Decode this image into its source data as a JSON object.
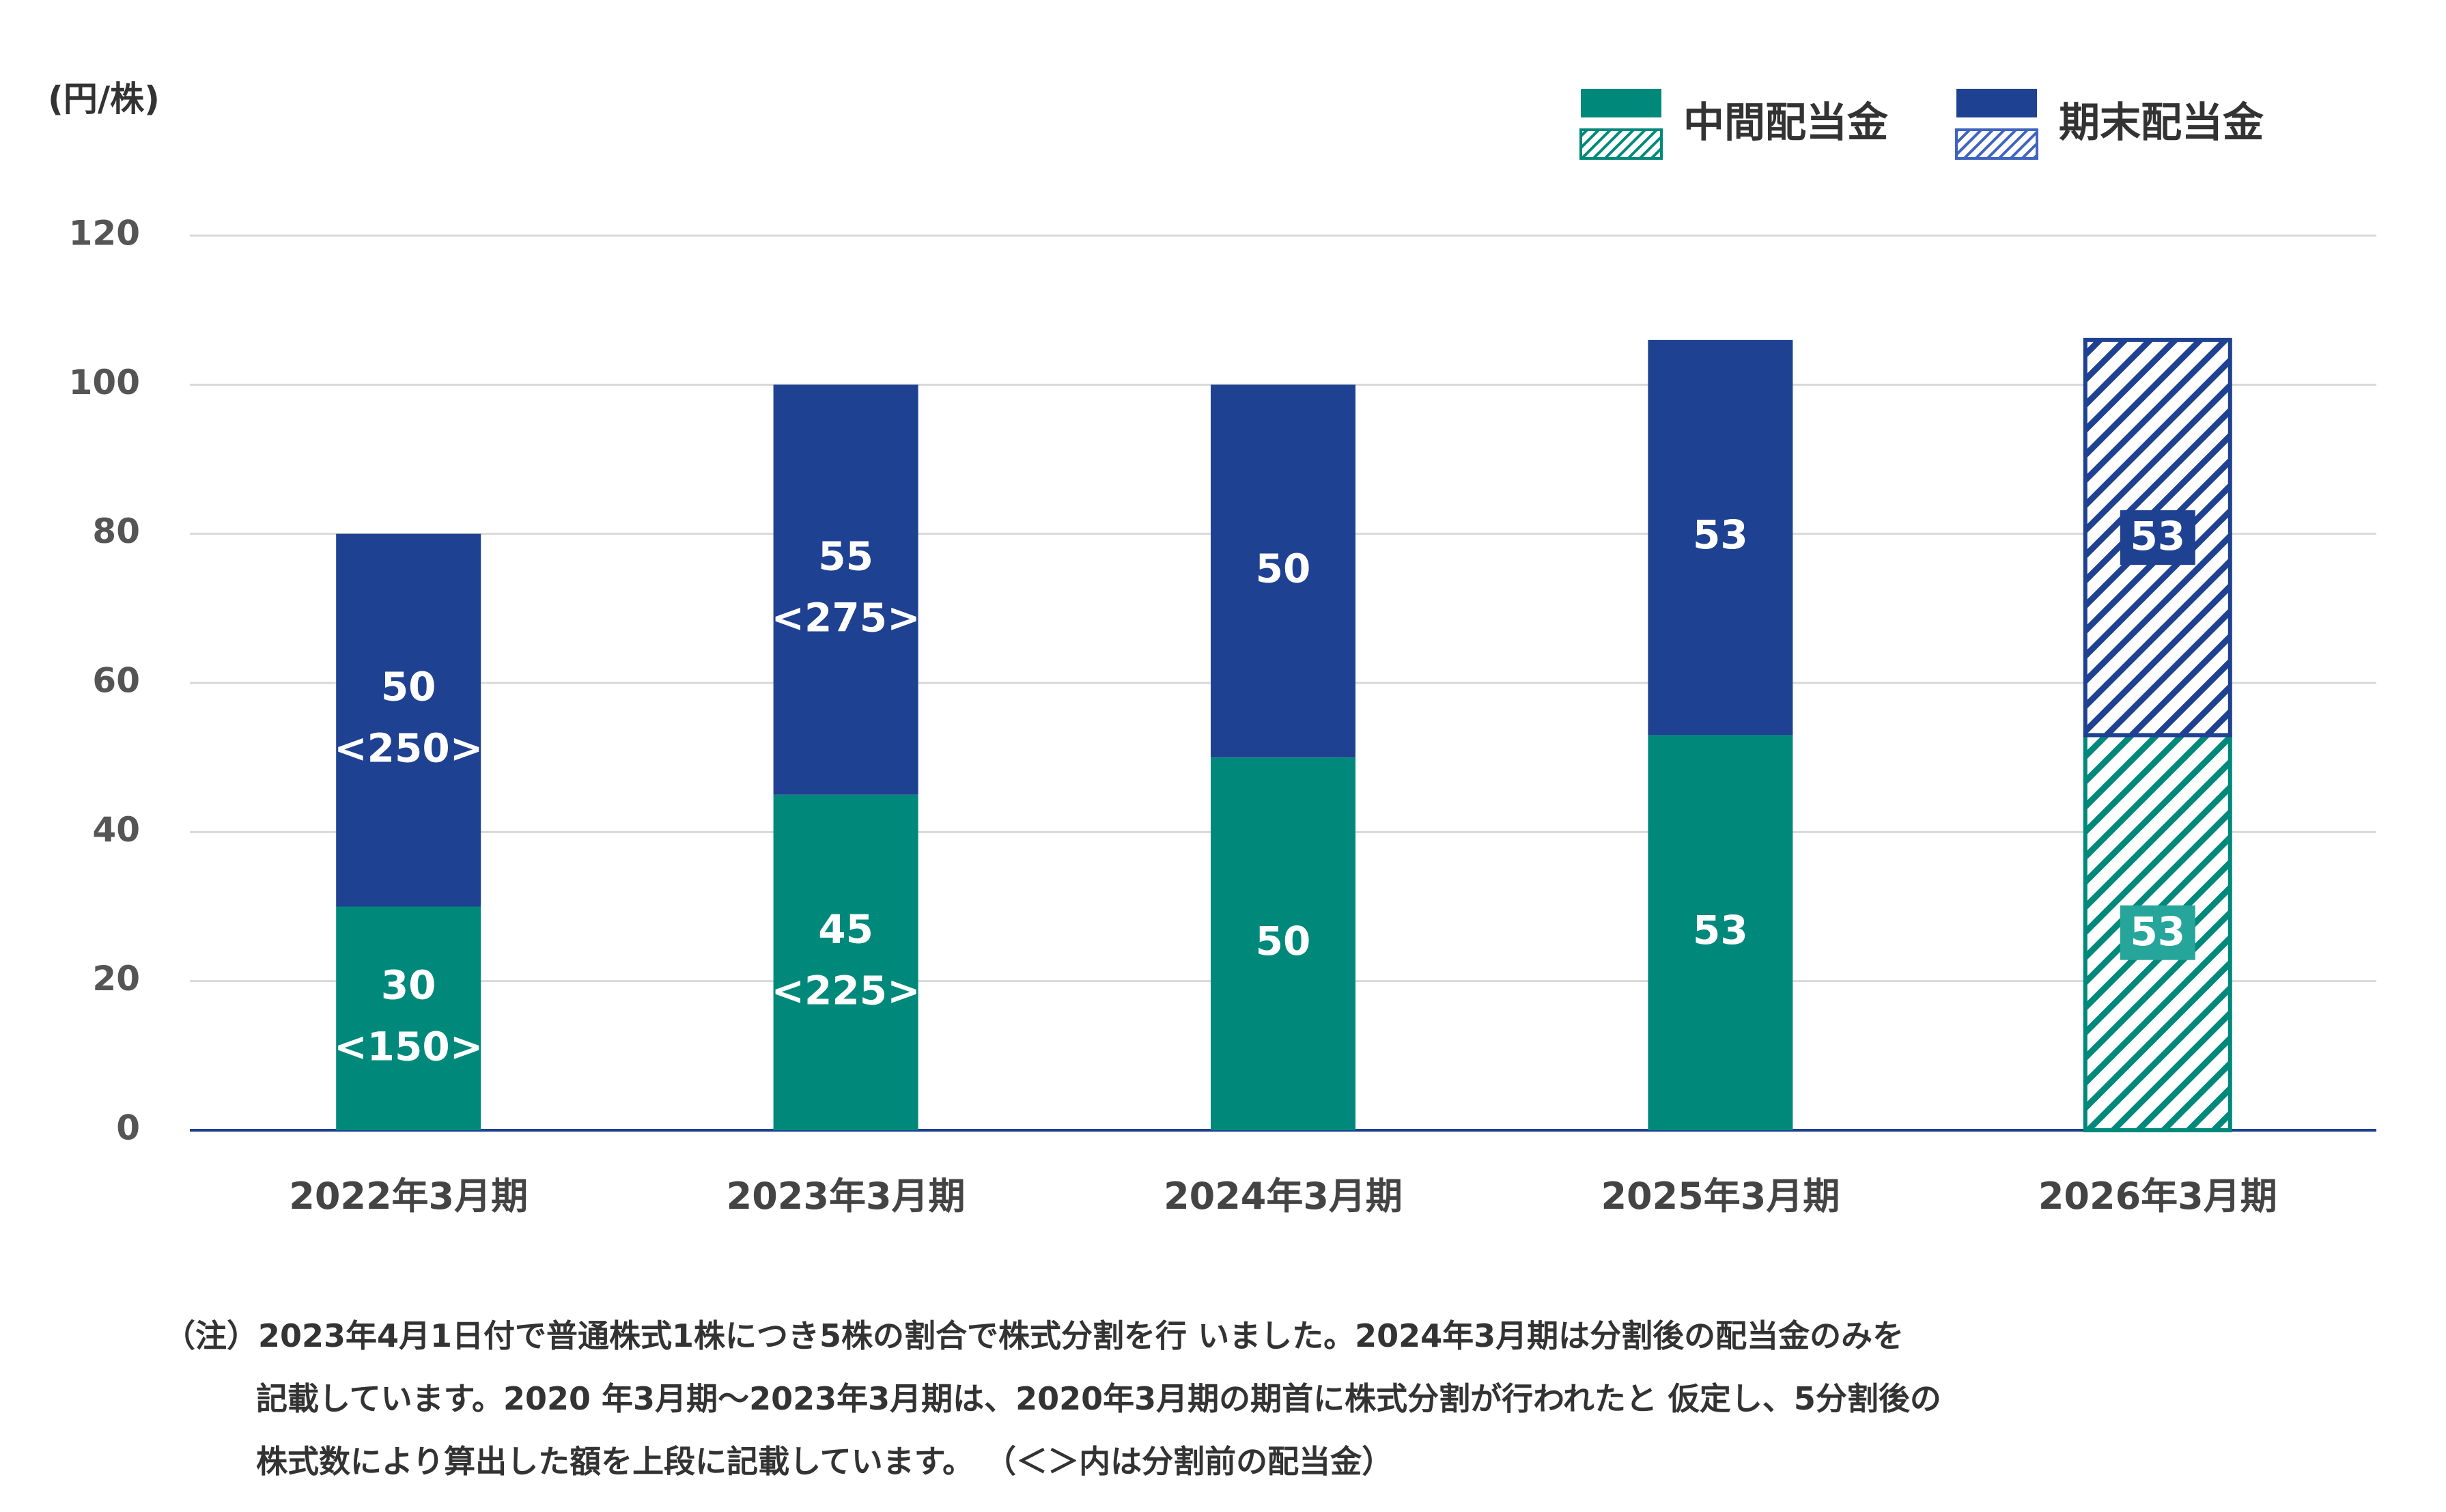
{
  "chart_data": {
    "type": "bar",
    "stacked": true,
    "y_unit": "(円/株)",
    "ylim": [
      0,
      120
    ],
    "yticks": [
      "0",
      "20",
      "40",
      "60",
      "80",
      "100",
      "120"
    ],
    "grid": true,
    "legend_position": "top-right",
    "categories": [
      "2022年3月期",
      "2023年3月期",
      "2024年3月期",
      "2025年3月期",
      "2026年3月期"
    ],
    "forecast_index": 4,
    "series": [
      {
        "name": "中間配当金",
        "color": "#00897b",
        "forecast_color": "#26a69a",
        "values": [
          30,
          45,
          50,
          53,
          53
        ],
        "labels": [
          "30",
          "45",
          "50",
          "53",
          "53"
        ],
        "sublabels": [
          "<150>",
          "<225>",
          "",
          "",
          ""
        ]
      },
      {
        "name": "期末配当金",
        "color": "#1f4191",
        "forecast_color": "#1f4191",
        "values": [
          50,
          55,
          50,
          53,
          53
        ],
        "labels": [
          "50",
          "55",
          "50",
          "53",
          "53"
        ],
        "sublabels": [
          "<250>",
          "<275>",
          "",
          "",
          ""
        ]
      }
    ]
  },
  "note": {
    "line1": "（注）2023年4月1日付で普通株式1株につき5株の割合で株式分割を行 いました。2024年3月期は分割後の配当金のみを",
    "line2": "記載しています。2020 年3月期～2023年3月期は、2020年3月期の期首に株式分割が行われたと 仮定し、5分割後の",
    "line3": "株式数により算出した額を上段に記載しています。 （＜＞内は分割前の配当金）"
  }
}
